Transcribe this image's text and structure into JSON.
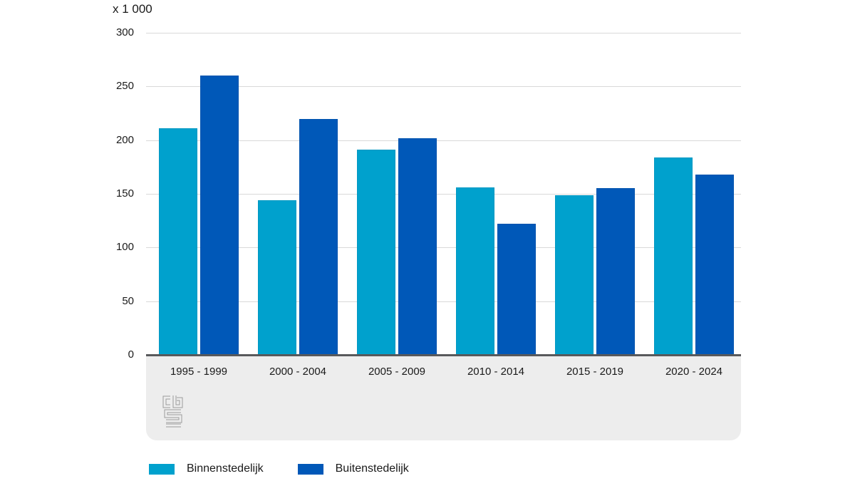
{
  "chart_data": {
    "type": "bar",
    "title": "",
    "unit_label": "x 1 000",
    "categories": [
      "1995 - 1999",
      "2000 - 2004",
      "2005 - 2009",
      "2010 - 2014",
      "2015 - 2019",
      "2020 - 2024"
    ],
    "series": [
      {
        "name": "Binnenstedelijk",
        "color": "#00a1cd",
        "values": [
          211,
          144,
          191,
          156,
          149,
          184
        ]
      },
      {
        "name": "Buitenstedelijk",
        "color": "#0058b8",
        "values": [
          260,
          220,
          202,
          122,
          155,
          168
        ]
      }
    ],
    "ylim": [
      0,
      300
    ],
    "ytick_step": 50,
    "yticks": [
      0,
      50,
      100,
      150,
      200,
      250,
      300
    ],
    "grid": true,
    "legend_position": "bottom"
  },
  "footer": {
    "logo_icon": "cbs-logo"
  },
  "colors": {
    "grid": "#d9d9d9",
    "axis": "#58595b",
    "footer_bg": "#ededed",
    "logo": "#9b9b9b",
    "text": "#1a1a1a"
  }
}
